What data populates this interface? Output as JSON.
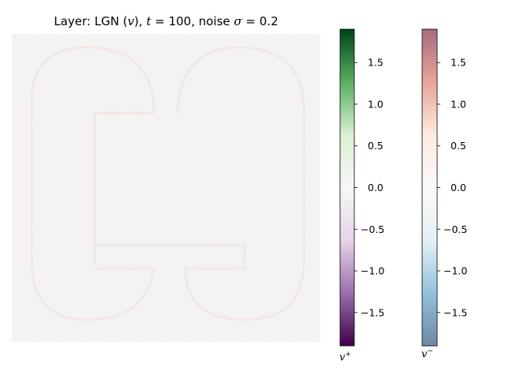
{
  "title": {
    "prefix": "Layer: LGN (",
    "var": "v",
    "mid1": "), ",
    "t_sym": "t",
    "mid2": " = 100, noise ",
    "sigma_sym": "σ",
    "suffix": " = 0.2"
  },
  "chart_data": [
    {
      "type": "heatmap",
      "title": "Layer: LGN (v), t = 100, noise σ = 0.2",
      "description_values": {
        "pattern": "two stacked rounded 'C'-like outlines (faint), near-zero activity field",
        "value_range_visible": [
          -0.1,
          0.1
        ]
      },
      "xlabel": "",
      "ylabel": "",
      "axes_visible": false
    },
    {
      "type": "colorbar",
      "name": "positive",
      "label_base": "v",
      "label_sup": "+",
      "colormap": "PRGn",
      "vmin": -1.9,
      "vmax": 1.9,
      "ticks": [
        1.5,
        1.0,
        0.5,
        0.0,
        -0.5,
        -1.0,
        -1.5
      ],
      "tick_labels": [
        "1.5",
        "1.0",
        "0.5",
        "0.0",
        "−0.5",
        "−1.0",
        "−1.5"
      ],
      "colors": [
        "#00441b",
        "#5aae61",
        "#d9f0d3",
        "#f7f7f7",
        "#e7d4e8",
        "#9970ab",
        "#40004b"
      ]
    },
    {
      "type": "colorbar",
      "name": "negative",
      "label_base": "v",
      "label_sup": "−",
      "colormap": "RdBu_r",
      "alpha": 0.6,
      "vmin": -1.9,
      "vmax": 1.9,
      "ticks": [
        1.5,
        1.0,
        0.5,
        0.0,
        -0.5,
        -1.0,
        -1.5
      ],
      "tick_labels": [
        "1.5",
        "1.0",
        "0.5",
        "0.0",
        "−0.5",
        "−1.0",
        "−1.5"
      ],
      "colors": [
        "#67001f",
        "#d6604d",
        "#fddbc7",
        "#f7f7f7",
        "#d1e5f0",
        "#4393c3",
        "#053061"
      ]
    }
  ]
}
